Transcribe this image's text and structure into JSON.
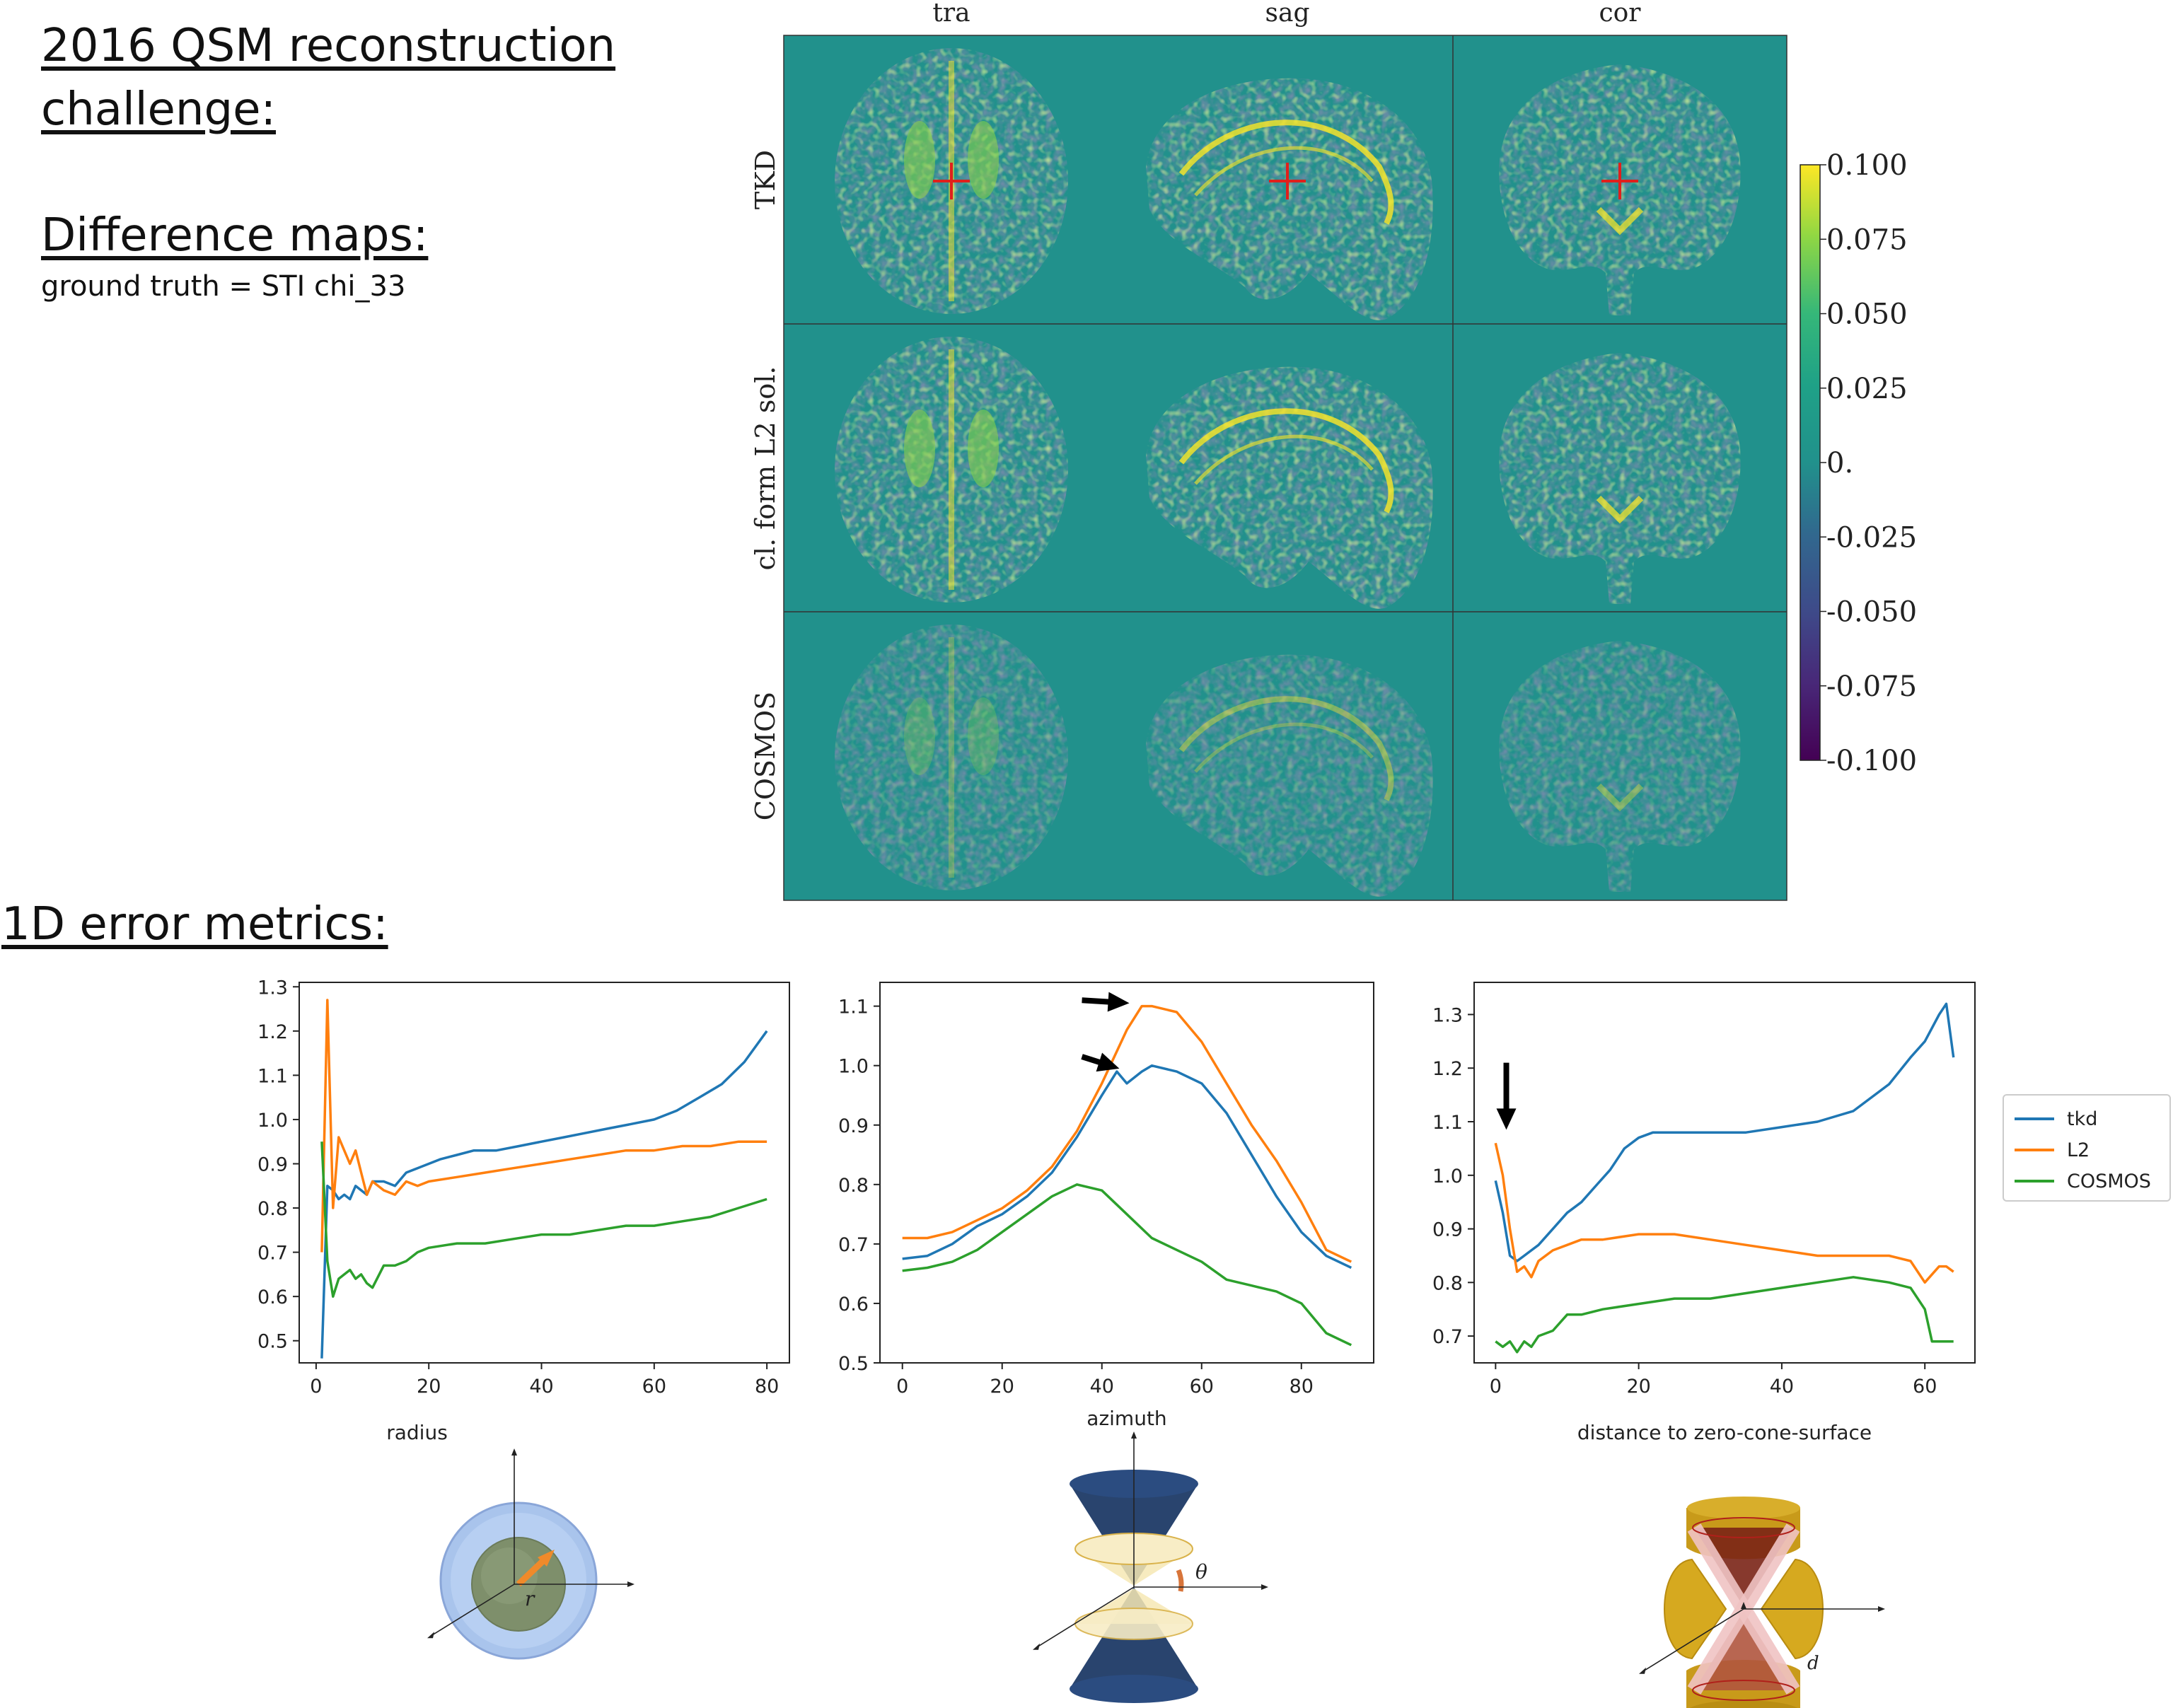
{
  "headings": {
    "challenge_line1": "2016 QSM reconstruction",
    "challenge_line2": "challenge:",
    "difference_maps": "Difference maps:",
    "ground_truth": "ground truth = STI chi_33",
    "metrics": "1D error metrics:"
  },
  "maps": {
    "columns": [
      "tra",
      "sag",
      "cor"
    ],
    "rows": [
      "TKD",
      "cl. form L2 sol.",
      "COSMOS"
    ],
    "colorbar_ticks": [
      "0.100",
      "0.075",
      "0.050",
      "0.025",
      "0.",
      "-0.025",
      "-0.050",
      "-0.075",
      "-0.100"
    ],
    "colormap": "viridis",
    "background_color": "#21918c",
    "crosshair_color": "#e0201c"
  },
  "chart_data": [
    {
      "type": "line",
      "xlabel": "radius",
      "xlim": [
        -3,
        84
      ],
      "ylim": [
        0.45,
        1.31
      ],
      "xticks": [
        0,
        20,
        40,
        60,
        80
      ],
      "yticks": [
        0.5,
        0.6,
        0.7,
        0.8,
        0.9,
        1.0,
        1.1,
        1.2,
        1.3
      ],
      "series": [
        {
          "name": "tkd",
          "color": "#1f77b4",
          "x": [
            1,
            2,
            3,
            4,
            5,
            6,
            7,
            8,
            9,
            10,
            12,
            14,
            16,
            18,
            20,
            22,
            25,
            28,
            32,
            36,
            40,
            44,
            48,
            52,
            56,
            60,
            64,
            68,
            72,
            76,
            80
          ],
          "y": [
            0.46,
            0.85,
            0.84,
            0.82,
            0.83,
            0.82,
            0.85,
            0.84,
            0.83,
            0.86,
            0.86,
            0.85,
            0.88,
            0.89,
            0.9,
            0.91,
            0.92,
            0.93,
            0.93,
            0.94,
            0.95,
            0.96,
            0.97,
            0.98,
            0.99,
            1.0,
            1.02,
            1.05,
            1.08,
            1.13,
            1.2
          ]
        },
        {
          "name": "L2",
          "color": "#ff7f0e",
          "x": [
            1,
            2,
            3,
            4,
            5,
            6,
            7,
            8,
            9,
            10,
            12,
            14,
            16,
            18,
            20,
            25,
            30,
            35,
            40,
            45,
            50,
            55,
            60,
            65,
            70,
            75,
            80
          ],
          "y": [
            0.7,
            1.27,
            0.8,
            0.96,
            0.93,
            0.9,
            0.93,
            0.88,
            0.83,
            0.86,
            0.84,
            0.83,
            0.86,
            0.85,
            0.86,
            0.87,
            0.88,
            0.89,
            0.9,
            0.91,
            0.92,
            0.93,
            0.93,
            0.94,
            0.94,
            0.95,
            0.95
          ]
        },
        {
          "name": "COSMOS",
          "color": "#2ca02c",
          "x": [
            1,
            2,
            3,
            4,
            5,
            6,
            7,
            8,
            9,
            10,
            12,
            14,
            16,
            18,
            20,
            25,
            30,
            35,
            40,
            45,
            50,
            55,
            60,
            65,
            70,
            75,
            80
          ],
          "y": [
            0.95,
            0.68,
            0.6,
            0.64,
            0.65,
            0.66,
            0.64,
            0.65,
            0.63,
            0.62,
            0.67,
            0.67,
            0.68,
            0.7,
            0.71,
            0.72,
            0.72,
            0.73,
            0.74,
            0.74,
            0.75,
            0.76,
            0.76,
            0.77,
            0.78,
            0.8,
            0.82
          ]
        }
      ]
    },
    {
      "type": "line",
      "xlabel": "azimuth",
      "xlim": [
        -4.5,
        94.5
      ],
      "ylim": [
        0.5,
        1.14
      ],
      "xticks": [
        0,
        20,
        40,
        60,
        80
      ],
      "yticks": [
        0.5,
        0.6,
        0.7,
        0.8,
        0.9,
        1.0,
        1.1
      ],
      "annotations": [
        "arrow at L2 peak",
        "arrow at tkd peak"
      ],
      "series": [
        {
          "name": "tkd",
          "color": "#1f77b4",
          "x": [
            0,
            5,
            10,
            15,
            20,
            25,
            30,
            35,
            40,
            43,
            45,
            48,
            50,
            55,
            60,
            65,
            70,
            75,
            80,
            85,
            90
          ],
          "y": [
            0.675,
            0.68,
            0.7,
            0.73,
            0.75,
            0.78,
            0.82,
            0.88,
            0.95,
            0.99,
            0.97,
            0.99,
            1.0,
            0.99,
            0.97,
            0.92,
            0.85,
            0.78,
            0.72,
            0.68,
            0.66
          ]
        },
        {
          "name": "L2",
          "color": "#ff7f0e",
          "x": [
            0,
            5,
            10,
            15,
            20,
            25,
            30,
            35,
            40,
            45,
            48,
            50,
            55,
            60,
            65,
            70,
            75,
            80,
            85,
            90
          ],
          "y": [
            0.71,
            0.71,
            0.72,
            0.74,
            0.76,
            0.79,
            0.83,
            0.89,
            0.97,
            1.06,
            1.1,
            1.1,
            1.09,
            1.04,
            0.97,
            0.9,
            0.84,
            0.77,
            0.69,
            0.67
          ]
        },
        {
          "name": "COSMOS",
          "color": "#2ca02c",
          "x": [
            0,
            5,
            10,
            15,
            20,
            25,
            30,
            35,
            40,
            45,
            50,
            55,
            60,
            65,
            70,
            75,
            80,
            85,
            90
          ],
          "y": [
            0.655,
            0.66,
            0.67,
            0.69,
            0.72,
            0.75,
            0.78,
            0.8,
            0.79,
            0.75,
            0.71,
            0.69,
            0.67,
            0.64,
            0.63,
            0.62,
            0.6,
            0.55,
            0.53
          ]
        }
      ]
    },
    {
      "type": "line",
      "xlabel": "distance to zero-cone-surface",
      "xlim": [
        -3,
        67
      ],
      "ylim": [
        0.65,
        1.36
      ],
      "xticks": [
        0,
        20,
        40,
        60
      ],
      "yticks": [
        0.7,
        0.8,
        0.9,
        1.0,
        1.1,
        1.2,
        1.3
      ],
      "annotations": [
        "arrow at start"
      ],
      "legend": {
        "position": "outside-right",
        "entries": [
          "tkd",
          "L2",
          "COSMOS"
        ]
      },
      "series": [
        {
          "name": "tkd",
          "color": "#1f77b4",
          "x": [
            0,
            1,
            2,
            3,
            4,
            5,
            6,
            8,
            10,
            12,
            14,
            16,
            18,
            20,
            22,
            25,
            30,
            35,
            40,
            45,
            50,
            55,
            58,
            60,
            62,
            63,
            64
          ],
          "y": [
            0.99,
            0.93,
            0.85,
            0.84,
            0.85,
            0.86,
            0.87,
            0.9,
            0.93,
            0.95,
            0.98,
            1.01,
            1.05,
            1.07,
            1.08,
            1.08,
            1.08,
            1.08,
            1.09,
            1.1,
            1.12,
            1.17,
            1.22,
            1.25,
            1.3,
            1.32,
            1.22
          ]
        },
        {
          "name": "L2",
          "color": "#ff7f0e",
          "x": [
            0,
            1,
            2,
            3,
            4,
            5,
            6,
            8,
            10,
            12,
            15,
            20,
            25,
            30,
            35,
            40,
            45,
            50,
            55,
            58,
            60,
            62,
            63,
            64
          ],
          "y": [
            1.06,
            1.0,
            0.9,
            0.82,
            0.83,
            0.81,
            0.84,
            0.86,
            0.87,
            0.88,
            0.88,
            0.89,
            0.89,
            0.88,
            0.87,
            0.86,
            0.85,
            0.85,
            0.85,
            0.84,
            0.8,
            0.83,
            0.83,
            0.82
          ]
        },
        {
          "name": "COSMOS",
          "color": "#2ca02c",
          "x": [
            0,
            1,
            2,
            3,
            4,
            5,
            6,
            8,
            10,
            12,
            15,
            20,
            25,
            30,
            35,
            40,
            45,
            50,
            55,
            58,
            60,
            61,
            62,
            64
          ],
          "y": [
            0.69,
            0.68,
            0.69,
            0.67,
            0.69,
            0.68,
            0.7,
            0.71,
            0.74,
            0.74,
            0.75,
            0.76,
            0.77,
            0.77,
            0.78,
            0.79,
            0.8,
            0.81,
            0.8,
            0.79,
            0.75,
            0.69,
            0.69,
            0.69
          ]
        }
      ]
    }
  ],
  "diagrams": {
    "radius_symbol": "r",
    "azimuth_symbol": "θ",
    "distance_symbol": "d"
  }
}
